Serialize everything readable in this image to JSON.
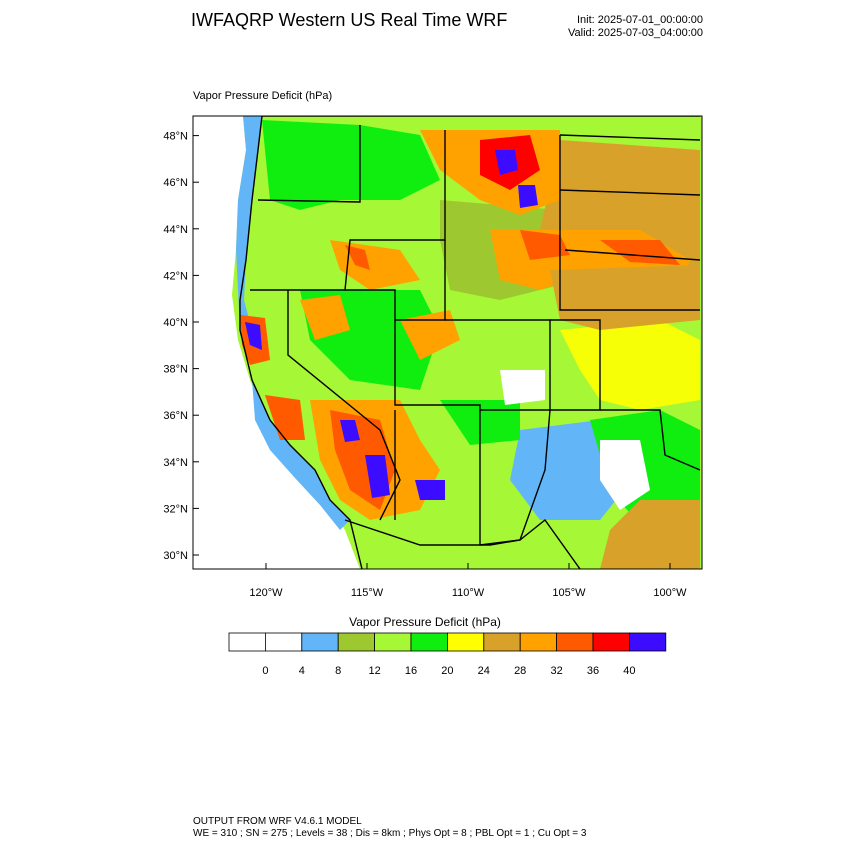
{
  "header": {
    "title": "IWFAQRP Western US Real Time WRF",
    "init": "Init: 2025-07-01_00:00:00",
    "valid": "Valid: 2025-07-03_04:00:00"
  },
  "map": {
    "field_label": "Vapor Pressure Deficit   (hPa)",
    "lat_ticks": [
      "30°N",
      "32°N",
      "34°N",
      "36°N",
      "38°N",
      "40°N",
      "42°N",
      "44°N",
      "46°N",
      "48°N"
    ],
    "lon_ticks": [
      "120°W",
      "115°W",
      "110°W",
      "105°W",
      "100°W"
    ]
  },
  "colorbar": {
    "title": "Vapor Pressure Deficit  (hPa)",
    "labels": [
      "0",
      "4",
      "8",
      "12",
      "16",
      "20",
      "24",
      "28",
      "32",
      "36",
      "40"
    ],
    "colors": [
      "#ffffff",
      "#ffffff",
      "#62b6f7",
      "#9dc830",
      "#a6f736",
      "#10ee10",
      "#ffff00",
      "#d8a22a",
      "#ffa200",
      "#ff5a00",
      "#ff0000",
      "#3b0cff"
    ]
  },
  "footer": {
    "line1": "OUTPUT FROM WRF V4.6.1 MODEL",
    "line2": "WE = 310 ; SN = 275 ; Levels = 38 ; Dis = 8km ; Phys Opt = 8 ; PBL Opt = 1 ; Cu Opt = 3"
  }
}
